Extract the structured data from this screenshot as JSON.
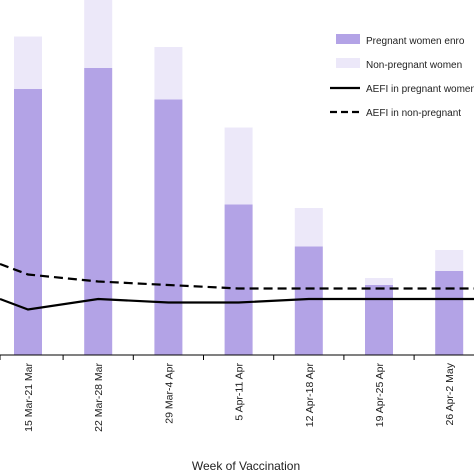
{
  "chart_data": {
    "type": "bar",
    "categories": [
      "15 Mar-21 Mar",
      "22 Mar-28 Mar",
      "29 Mar-4 Apr",
      "5 Apr-11 Apr",
      "12 Apr-18 Apr",
      "19 Apr-25 Apr",
      "26 Apr-2 May"
    ],
    "stacked": true,
    "ylim": [
      0,
      100
    ],
    "bar_series": [
      {
        "name": "Pregnant women enro",
        "color": "#b3a3e6",
        "values": [
          76,
          82,
          73,
          43,
          31,
          20,
          24
        ]
      },
      {
        "name": "Non-pregnant women",
        "color": "#ece8f9",
        "values": [
          15,
          21,
          15,
          22,
          11,
          2,
          6
        ]
      }
    ],
    "line_series": [
      {
        "name": "AEFI in pregnant women",
        "style": "solid",
        "color": "#000000",
        "values": [
          13,
          16,
          15,
          15,
          16,
          16,
          16
        ]
      },
      {
        "name": "AEFI in non-pregnant",
        "style": "dashed",
        "color": "#000000",
        "values": [
          23,
          21,
          20,
          19,
          19,
          19,
          19
        ]
      }
    ],
    "xlabel": "Week of Vaccination",
    "ylabel": "",
    "legend_position": "top-right",
    "grid": false
  }
}
